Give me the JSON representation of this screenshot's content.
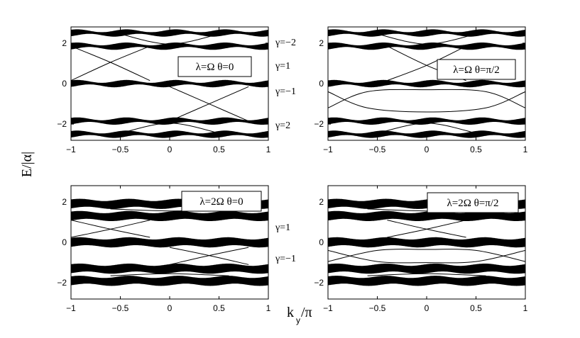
{
  "figure": {
    "ylabel": "E/|α|",
    "xlabel_main": "k",
    "xlabel_sub": "y",
    "xlabel_tail": "/π",
    "gamma_labels_top": [
      "γ=−2",
      "γ=1",
      "γ=−1",
      "γ=2"
    ],
    "gamma_labels_bottom": [
      "γ=1",
      "γ=−1"
    ]
  },
  "chart_data": [
    {
      "type": "line",
      "panel": "top-left",
      "title": "",
      "annotation": "λ=Ω θ=0",
      "xlabel": "",
      "ylabel": "",
      "xlim": [
        -1,
        1
      ],
      "ylim": [
        -2.8,
        2.8
      ],
      "xticks": [
        "−1",
        "−0.5",
        "0",
        "0.5",
        "1"
      ],
      "yticks": [
        "2",
        "0",
        "−2"
      ],
      "ytick_values": [
        2,
        0,
        -2
      ],
      "bands": [
        {
          "center": 2.5,
          "half_width_min": 0.06,
          "half_width_max": 0.16,
          "periods": 4
        },
        {
          "center": 1.85,
          "half_width_min": 0.06,
          "half_width_max": 0.16,
          "periods": 4
        },
        {
          "center": 0.0,
          "half_width_min": 0.06,
          "half_width_max": 0.16,
          "periods": 4
        },
        {
          "center": -1.85,
          "half_width_min": 0.06,
          "half_width_max": 0.16,
          "periods": 4
        },
        {
          "center": -2.5,
          "half_width_min": 0.06,
          "half_width_max": 0.16,
          "periods": 4
        }
      ],
      "edge_states": [
        {
          "x": [
            -1,
            -0.6,
            -0.2
          ],
          "y": [
            0.15,
            1.05,
            1.85
          ]
        },
        {
          "x": [
            -1,
            -0.6,
            -0.2
          ],
          "y": [
            1.85,
            1.05,
            0.15
          ]
        },
        {
          "x": [
            0.0,
            0.4,
            0.8
          ],
          "y": [
            -0.15,
            -1.0,
            -1.85
          ]
        },
        {
          "x": [
            0.0,
            0.4,
            0.8
          ],
          "y": [
            -1.85,
            -1.0,
            -0.15
          ]
        },
        {
          "x": [
            -0.5,
            0.0,
            0.5
          ],
          "y": [
            2.45,
            1.95,
            2.45
          ]
        },
        {
          "x": [
            -0.5,
            0.0,
            0.5
          ],
          "y": [
            -2.45,
            -1.95,
            -2.45
          ]
        }
      ]
    },
    {
      "type": "line",
      "panel": "top-right",
      "title": "",
      "annotation": "λ=Ω θ=π/2",
      "xlabel": "",
      "ylabel": "",
      "xlim": [
        -1,
        1
      ],
      "ylim": [
        -2.8,
        2.8
      ],
      "xticks": [
        "−1",
        "−0.5",
        "0",
        "0.5",
        "1"
      ],
      "yticks": [
        "2",
        "0",
        "−2"
      ],
      "ytick_values": [
        2,
        0,
        -2
      ],
      "bands": [
        {
          "center": 2.5,
          "half_width_min": 0.06,
          "half_width_max": 0.16,
          "periods": 4
        },
        {
          "center": 1.85,
          "half_width_min": 0.06,
          "half_width_max": 0.16,
          "periods": 4
        },
        {
          "center": 0.0,
          "half_width_min": 0.06,
          "half_width_max": 0.16,
          "periods": 4
        },
        {
          "center": -1.85,
          "half_width_min": 0.06,
          "half_width_max": 0.16,
          "periods": 4
        },
        {
          "center": -2.5,
          "half_width_min": 0.06,
          "half_width_max": 0.16,
          "periods": 4
        }
      ],
      "edge_states": [
        {
          "x": [
            -0.4,
            0.0,
            0.4
          ],
          "y": [
            1.85,
            0.9,
            0.15
          ]
        },
        {
          "x": [
            -0.4,
            0.0,
            0.4
          ],
          "y": [
            0.15,
            0.9,
            1.85
          ]
        },
        {
          "x": [
            -1.0,
            -0.6,
            0.0,
            0.6,
            1.0
          ],
          "y": [
            -1.2,
            -0.4,
            -0.3,
            -0.4,
            -1.2
          ]
        },
        {
          "x": [
            -1.0,
            -0.6,
            0.0,
            0.6,
            1.0
          ],
          "y": [
            -0.4,
            -1.2,
            -1.4,
            -1.2,
            -0.4
          ]
        },
        {
          "x": [
            -0.5,
            0.0,
            0.5
          ],
          "y": [
            2.45,
            1.95,
            2.45
          ]
        },
        {
          "x": [
            -0.5,
            0.0,
            0.5
          ],
          "y": [
            -2.45,
            -1.95,
            -2.45
          ]
        }
      ]
    },
    {
      "type": "line",
      "panel": "bottom-left",
      "title": "",
      "annotation": "λ=2Ω θ=0",
      "xlabel": "",
      "ylabel": "",
      "xlim": [
        -1,
        1
      ],
      "ylim": [
        -2.8,
        2.8
      ],
      "xticks": [
        "−1",
        "−0.5",
        "0",
        "0.5",
        "1"
      ],
      "yticks": [
        "2",
        "0",
        "−2"
      ],
      "ytick_values": [
        2,
        0,
        -2
      ],
      "bands": [
        {
          "center": 1.9,
          "half_width_min": 0.17,
          "half_width_max": 0.22,
          "periods": 4
        },
        {
          "center": 1.3,
          "half_width_min": 0.17,
          "half_width_max": 0.22,
          "periods": 4
        },
        {
          "center": 0.0,
          "half_width_min": 0.17,
          "half_width_max": 0.22,
          "periods": 4
        },
        {
          "center": -1.3,
          "half_width_min": 0.17,
          "half_width_max": 0.22,
          "periods": 4
        },
        {
          "center": -1.9,
          "half_width_min": 0.17,
          "half_width_max": 0.22,
          "periods": 4
        }
      ],
      "edge_states": [
        {
          "x": [
            -1,
            -0.6,
            -0.2
          ],
          "y": [
            0.25,
            0.65,
            1.1
          ]
        },
        {
          "x": [
            -1,
            -0.6,
            -0.2
          ],
          "y": [
            1.1,
            0.65,
            0.25
          ]
        },
        {
          "x": [
            0.0,
            0.4,
            0.8
          ],
          "y": [
            -0.25,
            -0.65,
            -1.1
          ]
        },
        {
          "x": [
            0.0,
            0.4,
            0.8
          ],
          "y": [
            -1.1,
            -0.65,
            -0.25
          ]
        },
        {
          "x": [
            -0.6,
            0.0,
            0.6
          ],
          "y": [
            1.65,
            1.55,
            1.65
          ]
        },
        {
          "x": [
            -0.6,
            0.0,
            0.6
          ],
          "y": [
            -1.65,
            -1.55,
            -1.65
          ]
        }
      ]
    },
    {
      "type": "line",
      "panel": "bottom-right",
      "title": "",
      "annotation": "λ=2Ω θ=π/2",
      "xlabel": "",
      "ylabel": "",
      "xlim": [
        -1,
        1
      ],
      "ylim": [
        -2.8,
        2.8
      ],
      "xticks": [
        "−1",
        "−0.5",
        "0",
        "0.5",
        "1"
      ],
      "yticks": [
        "2",
        "0",
        "−2"
      ],
      "ytick_values": [
        2,
        0,
        -2
      ],
      "bands": [
        {
          "center": 1.9,
          "half_width_min": 0.17,
          "half_width_max": 0.22,
          "periods": 4
        },
        {
          "center": 1.3,
          "half_width_min": 0.17,
          "half_width_max": 0.22,
          "periods": 4
        },
        {
          "center": 0.0,
          "half_width_min": 0.17,
          "half_width_max": 0.22,
          "periods": 4
        },
        {
          "center": -1.3,
          "half_width_min": 0.17,
          "half_width_max": 0.22,
          "periods": 4
        },
        {
          "center": -1.9,
          "half_width_min": 0.17,
          "half_width_max": 0.22,
          "periods": 4
        }
      ],
      "edge_states": [
        {
          "x": [
            -0.4,
            0.0,
            0.4
          ],
          "y": [
            1.1,
            0.65,
            0.25
          ]
        },
        {
          "x": [
            -0.4,
            0.0,
            0.4
          ],
          "y": [
            0.25,
            0.65,
            1.1
          ]
        },
        {
          "x": [
            -1.0,
            -0.5,
            0.0,
            0.5,
            1.0
          ],
          "y": [
            -0.95,
            -0.4,
            -0.35,
            -0.4,
            -0.95
          ]
        },
        {
          "x": [
            -1.0,
            -0.5,
            0.0,
            0.5,
            1.0
          ],
          "y": [
            -0.4,
            -0.95,
            -1.0,
            -0.95,
            -0.4
          ]
        },
        {
          "x": [
            -0.6,
            0.0,
            0.6
          ],
          "y": [
            1.65,
            1.55,
            1.65
          ]
        },
        {
          "x": [
            -0.6,
            0.0,
            0.6
          ],
          "y": [
            -1.65,
            -1.55,
            -1.65
          ]
        }
      ]
    }
  ]
}
